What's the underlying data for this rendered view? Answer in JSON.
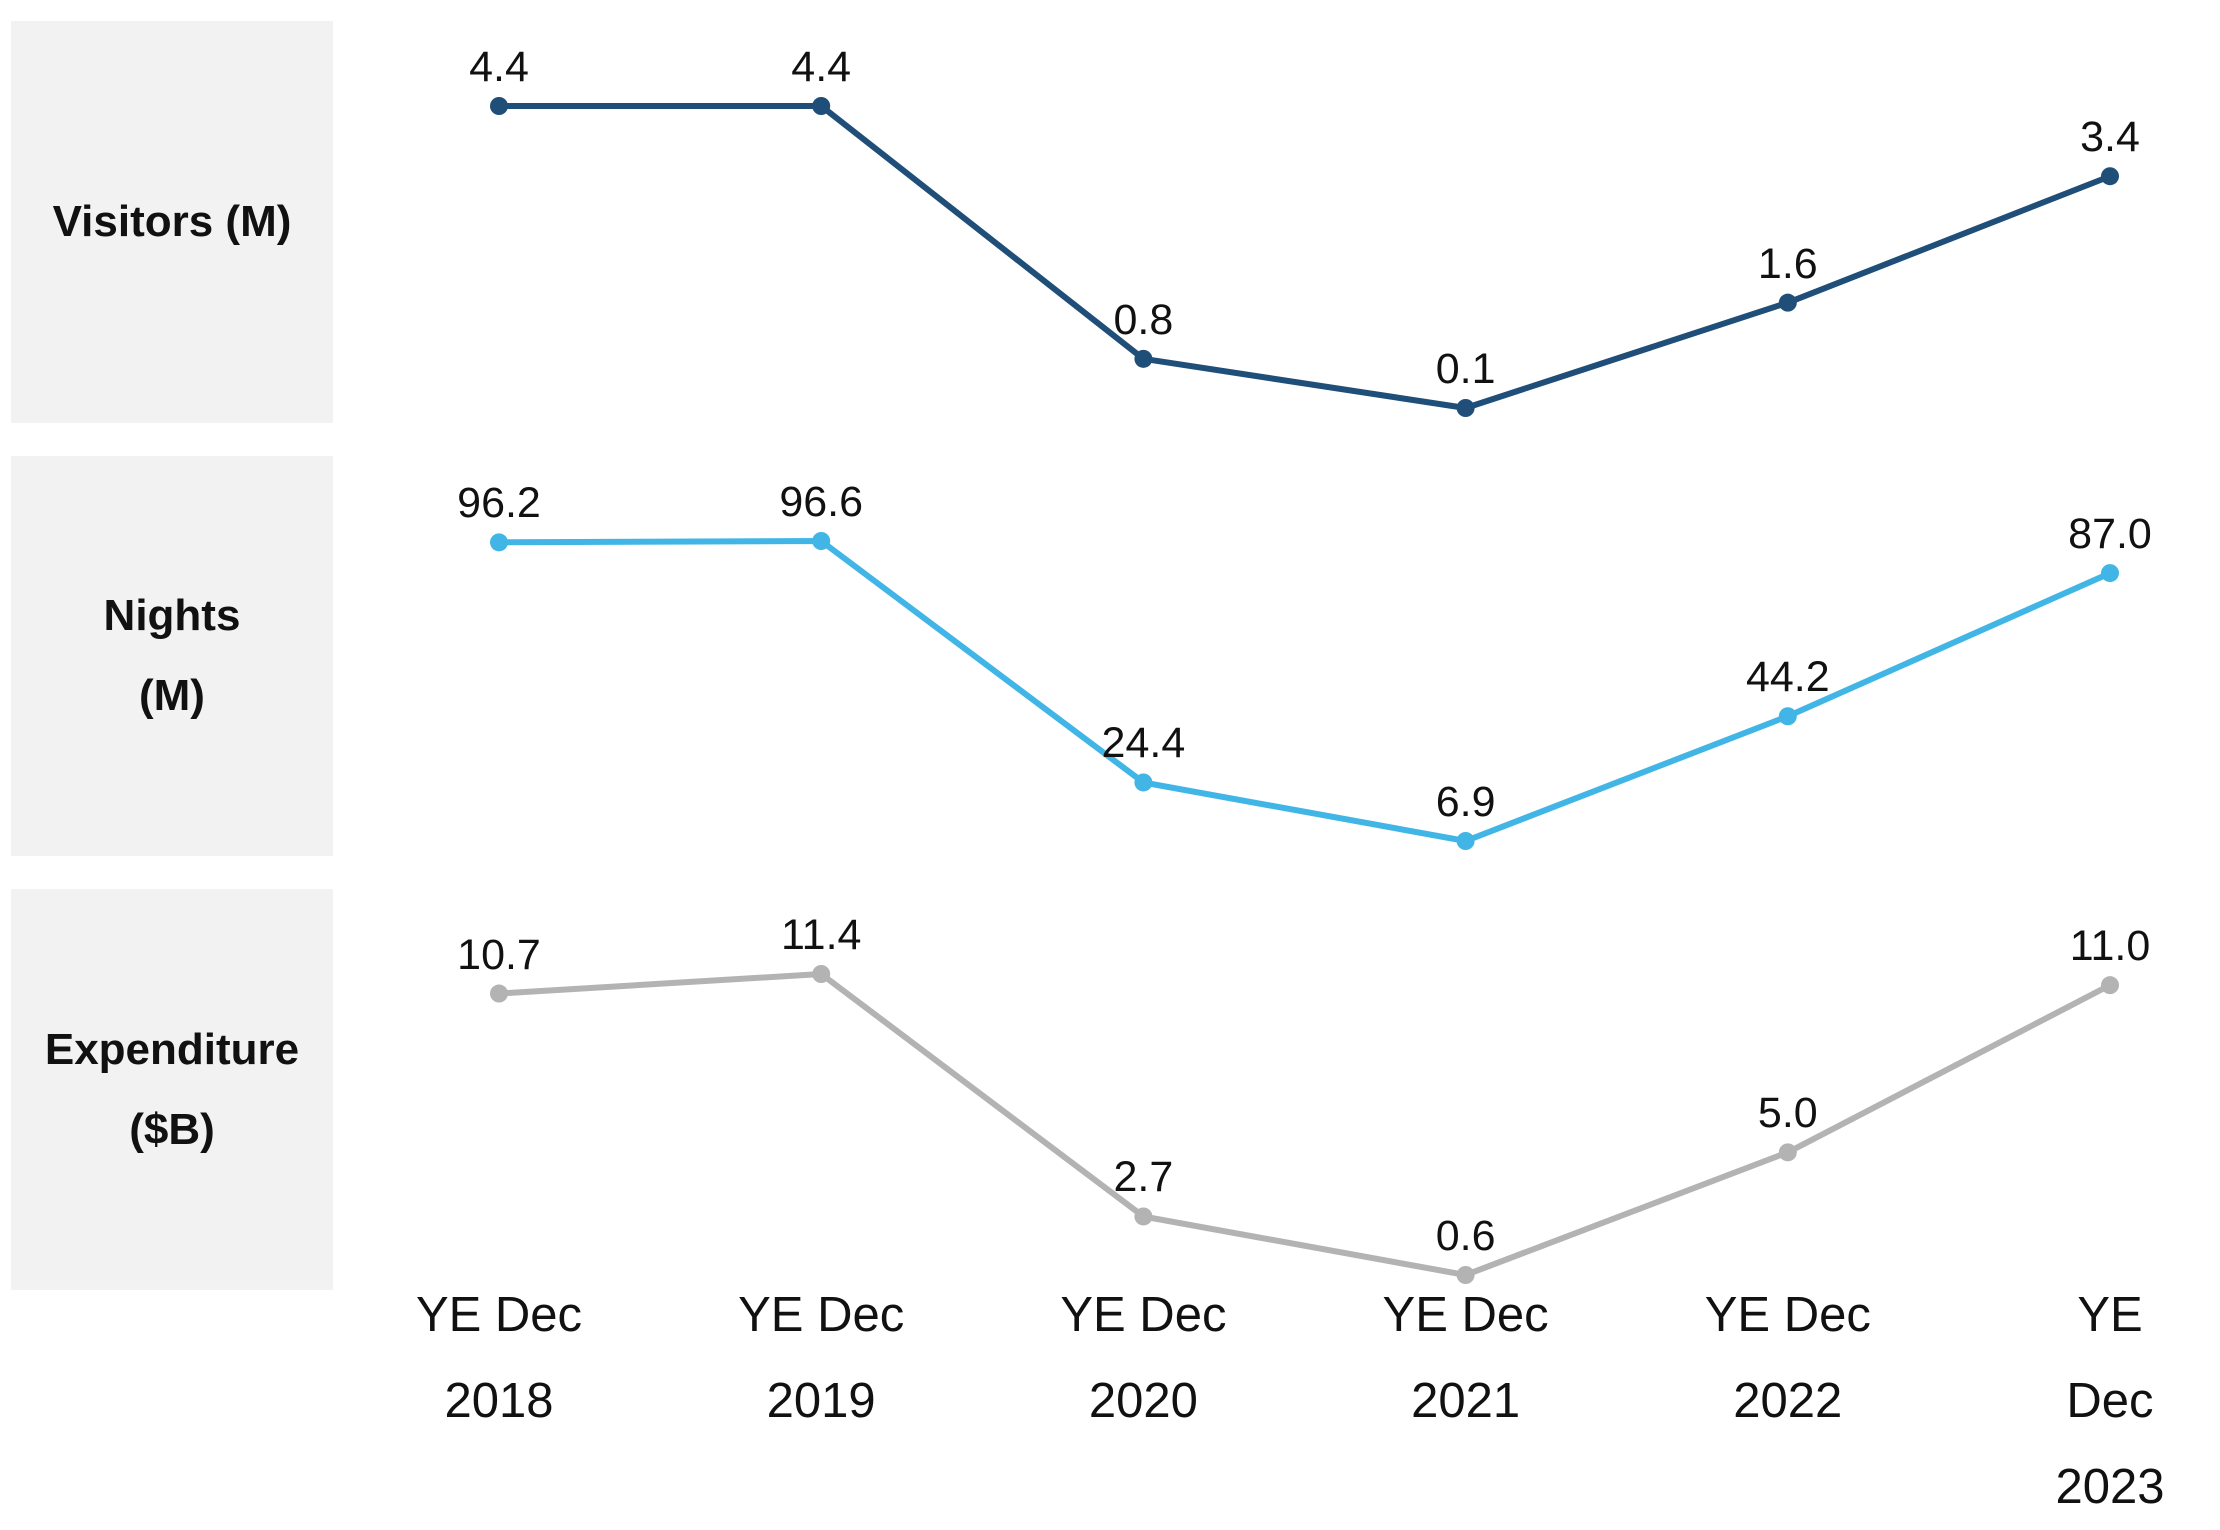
{
  "chart_data": [
    {
      "type": "line",
      "title": "Visitors (M)",
      "color": "#1f4e79",
      "values": [
        4.4,
        4.4,
        0.8,
        0.1,
        1.6,
        3.4
      ]
    },
    {
      "type": "line",
      "title": "Nights\n(M)",
      "color": "#41b6e6",
      "values": [
        96.2,
        96.6,
        24.4,
        6.9,
        44.2,
        87.0
      ],
      "value_labels": [
        "96.2",
        "96.6",
        "24.4",
        "6.9",
        "44.2",
        "87.0"
      ]
    },
    {
      "type": "line",
      "title": "Expenditure\n($B)",
      "color": "#b3b3b3",
      "values": [
        10.7,
        11.4,
        2.7,
        0.6,
        5.0,
        11.0
      ],
      "value_labels": [
        "10.7",
        "11.4",
        "2.7",
        "0.6",
        "5.0",
        "11.0"
      ],
      "categories": [
        "YE Dec\n2018",
        "YE Dec\n2019",
        "YE Dec\n2020",
        "YE Dec\n2021",
        "YE Dec\n2022",
        "YE Dec\n2023"
      ]
    }
  ]
}
